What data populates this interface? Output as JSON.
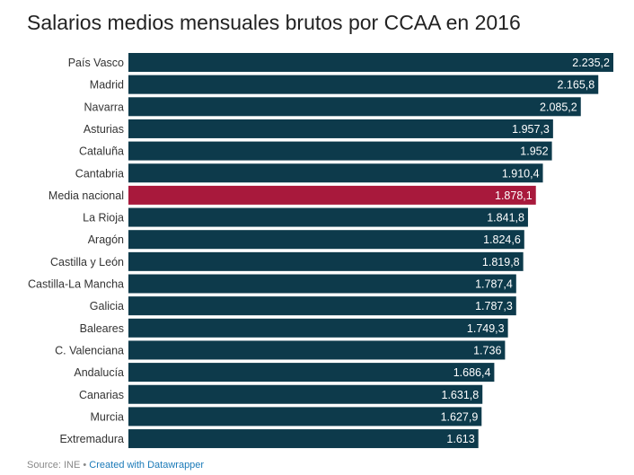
{
  "title": "Salarios medios mensuales brutos por CCAA en 2016",
  "footer": {
    "source": "Source: INE",
    "separator": "•",
    "credit": "Created with Datawrapper"
  },
  "colors": {
    "bar": "#0d3a4b",
    "highlight": "#a8193c",
    "label": "#333333",
    "value": "#ffffff"
  },
  "chart_data": {
    "type": "bar",
    "orientation": "horizontal",
    "categories": [
      "País Vasco",
      "Madrid",
      "Navarra",
      "Asturias",
      "Cataluña",
      "Cantabria",
      "Media nacional",
      "La Rioja",
      "Aragón",
      "Castilla y León",
      "Castilla-La Mancha",
      "Galicia",
      "Baleares",
      "C. Valenciana",
      "Andalucía",
      "Canarias",
      "Murcia",
      "Extremadura"
    ],
    "values": [
      2235.2,
      2165.8,
      2085.2,
      1957.3,
      1952,
      1910.4,
      1878.1,
      1841.8,
      1824.6,
      1819.8,
      1787.4,
      1787.3,
      1749.3,
      1736,
      1686.4,
      1631.8,
      1627.9,
      1613
    ],
    "value_labels": [
      "2.235,2",
      "2.165,8",
      "2.085,2",
      "1.957,3",
      "1.952",
      "1.910,4",
      "1.878,1",
      "1.841,8",
      "1.824,6",
      "1.819,8",
      "1.787,4",
      "1.787,3",
      "1.749,3",
      "1.736",
      "1.686,4",
      "1.631,8",
      "1.627,9",
      "1.613"
    ],
    "highlight": "Media nacional",
    "xlim": [
      0,
      2235.2
    ],
    "grid": false,
    "legend": "none"
  }
}
